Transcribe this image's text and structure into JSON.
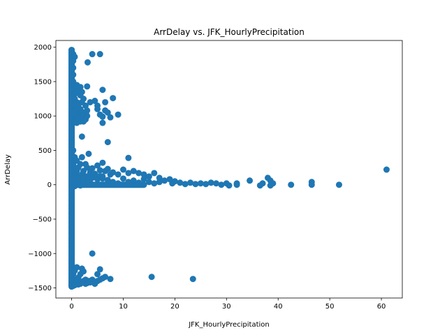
{
  "chart_data": {
    "type": "scatter",
    "title": "ArrDelay vs. JFK_HourlyPrecipitation",
    "xlabel": "JFK_HourlyPrecipitation",
    "ylabel": "ArrDelay",
    "xlim": [
      -3.05,
      64.05
    ],
    "ylim": [
      -1647,
      2098
    ],
    "xticks": [
      0,
      10,
      20,
      30,
      40,
      50,
      60
    ],
    "yticks": [
      -1500,
      -1000,
      -500,
      0,
      500,
      1000,
      1500,
      2000
    ],
    "xtick_labels": [
      "0",
      "10",
      "20",
      "30",
      "40",
      "50",
      "60"
    ],
    "ytick_labels": [
      "−1500",
      "−1000",
      "−500",
      "0",
      "500",
      "1000",
      "1500",
      "2000"
    ],
    "grid": false,
    "legend": false,
    "marker_color": "#1f77b4",
    "series": [
      {
        "points": [
          [
            0,
            1960
          ],
          [
            0,
            1920
          ],
          [
            0,
            1890
          ],
          [
            0,
            1850
          ],
          [
            0,
            1820
          ],
          [
            0,
            1780
          ],
          [
            0,
            1750
          ],
          [
            0,
            1700
          ],
          [
            0,
            1650
          ],
          [
            0,
            1600
          ],
          [
            0,
            1550
          ],
          [
            0,
            1500
          ],
          [
            0,
            1450
          ],
          [
            0,
            1400
          ],
          [
            0,
            1350
          ],
          [
            0,
            1300
          ],
          [
            0,
            1250
          ],
          [
            0,
            1200
          ],
          [
            0,
            1150
          ],
          [
            0,
            1100
          ],
          [
            0,
            1050
          ],
          [
            0,
            1000
          ],
          [
            0,
            950
          ],
          [
            0,
            900
          ],
          [
            0,
            850
          ],
          [
            0,
            800
          ],
          [
            0,
            750
          ],
          [
            0,
            700
          ],
          [
            0,
            650
          ],
          [
            0,
            600
          ],
          [
            0,
            550
          ],
          [
            0,
            500
          ],
          [
            0,
            450
          ],
          [
            0,
            400
          ],
          [
            0,
            350
          ],
          [
            0,
            300
          ],
          [
            0,
            250
          ],
          [
            0,
            200
          ],
          [
            0,
            150
          ],
          [
            0,
            100
          ],
          [
            0,
            50
          ],
          [
            0,
            0
          ],
          [
            0,
            -30
          ],
          [
            0,
            -80
          ],
          [
            0,
            -150
          ],
          [
            0,
            -220
          ],
          [
            0,
            -300
          ],
          [
            0,
            -350
          ],
          [
            0,
            -420
          ],
          [
            0,
            -480
          ],
          [
            0,
            -550
          ],
          [
            0,
            -620
          ],
          [
            0,
            -700
          ],
          [
            0,
            -800
          ],
          [
            0,
            -850
          ],
          [
            0,
            -900
          ],
          [
            0,
            -1000
          ],
          [
            0,
            -1100
          ],
          [
            0,
            -1150
          ],
          [
            0,
            -1200
          ],
          [
            0,
            -1250
          ],
          [
            0,
            -1300
          ],
          [
            0,
            -1350
          ],
          [
            0,
            -1400
          ],
          [
            0,
            -1450
          ],
          [
            0,
            -1480
          ],
          [
            0.3,
            1900
          ],
          [
            0.3,
            1800
          ],
          [
            0.3,
            1700
          ],
          [
            0.3,
            1600
          ],
          [
            0.3,
            1500
          ],
          [
            0.3,
            1400
          ],
          [
            0.3,
            1300
          ],
          [
            0.3,
            1200
          ],
          [
            0.3,
            1100
          ],
          [
            0.3,
            1000
          ],
          [
            0.3,
            950
          ],
          [
            0.3,
            500
          ],
          [
            0.3,
            300
          ],
          [
            0.3,
            150
          ],
          [
            0.3,
            50
          ],
          [
            0.3,
            -30
          ],
          [
            0.3,
            -1300
          ],
          [
            0.3,
            -1400
          ],
          [
            0.3,
            -1470
          ],
          [
            0.6,
            1860
          ],
          [
            0.6,
            1450
          ],
          [
            0.6,
            1380
          ],
          [
            0.6,
            1320
          ],
          [
            0.6,
            1250
          ],
          [
            0.6,
            1150
          ],
          [
            0.6,
            1050
          ],
          [
            0.6,
            980
          ],
          [
            0.6,
            920
          ],
          [
            0.6,
            400
          ],
          [
            0.6,
            250
          ],
          [
            0.6,
            100
          ],
          [
            0.6,
            -20
          ],
          [
            0.6,
            -1250
          ],
          [
            0.6,
            -1380
          ],
          [
            0.6,
            -1460
          ],
          [
            1.0,
            1450
          ],
          [
            1.0,
            1350
          ],
          [
            1.0,
            1200
          ],
          [
            1.0,
            1100
          ],
          [
            1.0,
            1000
          ],
          [
            1.0,
            900
          ],
          [
            1.0,
            350
          ],
          [
            1.0,
            200
          ],
          [
            1.0,
            80
          ],
          [
            1.0,
            0
          ],
          [
            1.0,
            -1200
          ],
          [
            1.0,
            -1420
          ],
          [
            1.3,
            1400
          ],
          [
            1.3,
            1150
          ],
          [
            1.3,
            950
          ],
          [
            1.3,
            250
          ],
          [
            1.3,
            60
          ],
          [
            1.3,
            -1350
          ],
          [
            1.3,
            -1450
          ],
          [
            1.7,
            1420
          ],
          [
            1.7,
            1300
          ],
          [
            1.7,
            1100
          ],
          [
            1.7,
            980
          ],
          [
            1.7,
            920
          ],
          [
            1.7,
            300
          ],
          [
            1.7,
            120
          ],
          [
            1.7,
            -10
          ],
          [
            1.7,
            -1300
          ],
          [
            1.7,
            -1440
          ],
          [
            2.0,
            1350
          ],
          [
            2.0,
            1200
          ],
          [
            2.0,
            1050
          ],
          [
            2.0,
            700
          ],
          [
            2.0,
            400
          ],
          [
            2.0,
            150
          ],
          [
            2.0,
            30
          ],
          [
            2.0,
            -1220
          ],
          [
            2.0,
            -1420
          ],
          [
            2.3,
            1250
          ],
          [
            2.3,
            1000
          ],
          [
            2.3,
            920
          ],
          [
            2.3,
            200
          ],
          [
            2.3,
            50
          ],
          [
            2.3,
            -1260
          ],
          [
            2.3,
            -1400
          ],
          [
            2.7,
            1150
          ],
          [
            2.7,
            950
          ],
          [
            2.7,
            300
          ],
          [
            2.7,
            100
          ],
          [
            2.7,
            -1380
          ],
          [
            2.7,
            -1440
          ],
          [
            3.0,
            1430
          ],
          [
            3.0,
            1080
          ],
          [
            3.0,
            1000
          ],
          [
            3.0,
            250
          ],
          [
            3.0,
            70
          ],
          [
            3.0,
            -1430
          ],
          [
            3.1,
            1780
          ],
          [
            3.3,
            450
          ],
          [
            3.3,
            120
          ],
          [
            3.3,
            -1400
          ],
          [
            3.6,
            1200
          ],
          [
            3.6,
            180
          ],
          [
            3.6,
            30
          ],
          [
            3.6,
            -1420
          ],
          [
            4.0,
            1900
          ],
          [
            4.0,
            -1000
          ],
          [
            4.0,
            100
          ],
          [
            4.0,
            240
          ],
          [
            4.0,
            -1380
          ],
          [
            4.5,
            1220
          ],
          [
            4.5,
            160
          ],
          [
            4.5,
            -1440
          ],
          [
            5.0,
            1150
          ],
          [
            5.0,
            1100
          ],
          [
            5.0,
            280
          ],
          [
            5.0,
            80
          ],
          [
            5.0,
            -1400
          ],
          [
            5.0,
            -1300
          ],
          [
            5.5,
            1900
          ],
          [
            5.5,
            1020
          ],
          [
            5.5,
            210
          ],
          [
            5.5,
            -1230
          ],
          [
            5.5,
            -1380
          ],
          [
            6.0,
            1380
          ],
          [
            6.0,
            990
          ],
          [
            6.0,
            900
          ],
          [
            6.0,
            320
          ],
          [
            6.0,
            90
          ],
          [
            6.0,
            -1360
          ],
          [
            6.5,
            1080
          ],
          [
            6.5,
            1200
          ],
          [
            6.5,
            200
          ],
          [
            6.5,
            -1340
          ],
          [
            7.0,
            1050
          ],
          [
            7.0,
            620
          ],
          [
            7.0,
            230
          ],
          [
            7.0,
            70
          ],
          [
            7.5,
            980
          ],
          [
            7.5,
            150
          ],
          [
            7.5,
            -1370
          ],
          [
            8.0,
            1260
          ],
          [
            8.0,
            180
          ],
          [
            8.0,
            40
          ],
          [
            9.0,
            1020
          ],
          [
            9.0,
            150
          ],
          [
            9.0,
            20
          ],
          [
            10.0,
            220
          ],
          [
            10.0,
            90
          ],
          [
            11.0,
            390
          ],
          [
            11.0,
            170
          ],
          [
            11.0,
            40
          ],
          [
            12.0,
            200
          ],
          [
            12.0,
            60
          ],
          [
            13.0,
            170
          ],
          [
            13.0,
            30
          ],
          [
            14.0,
            150
          ],
          [
            14.0,
            80
          ],
          [
            15.0,
            120
          ],
          [
            15.0,
            40
          ],
          [
            15.5,
            -1340
          ],
          [
            16.0,
            170
          ],
          [
            16.0,
            20
          ],
          [
            17.0,
            100
          ],
          [
            17.0,
            40
          ],
          [
            18.0,
            60
          ],
          [
            19.0,
            80
          ],
          [
            19.5,
            20
          ],
          [
            20.0,
            50
          ],
          [
            21.0,
            30
          ],
          [
            22.0,
            10
          ],
          [
            23.0,
            30
          ],
          [
            23.5,
            -1370
          ],
          [
            24.0,
            10
          ],
          [
            25.0,
            20
          ],
          [
            26.0,
            10
          ],
          [
            27.0,
            30
          ],
          [
            28.0,
            20
          ],
          [
            29.0,
            0
          ],
          [
            30.0,
            20
          ],
          [
            30.5,
            -10
          ],
          [
            32.0,
            20
          ],
          [
            32.0,
            0
          ],
          [
            34.5,
            60
          ],
          [
            36.5,
            -10
          ],
          [
            37.0,
            20
          ],
          [
            38.0,
            100
          ],
          [
            38.5,
            60
          ],
          [
            38.5,
            -10
          ],
          [
            39.0,
            20
          ],
          [
            42.5,
            0
          ],
          [
            46.5,
            40
          ],
          [
            46.5,
            0
          ],
          [
            51.8,
            0
          ],
          [
            61.0,
            220
          ]
        ]
      }
    ]
  }
}
